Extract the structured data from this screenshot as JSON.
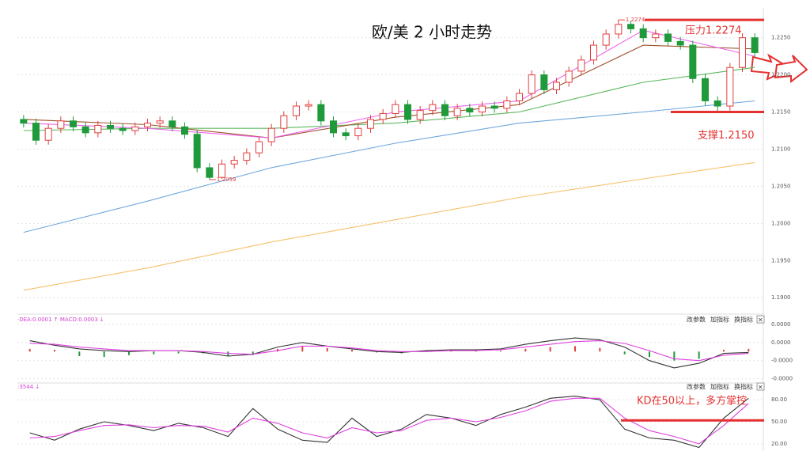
{
  "chart_data": [
    {
      "type": "candlestick",
      "title": "欧/美  2 小时走势",
      "open": [
        1.214,
        1.2135,
        1.2112,
        1.2128,
        1.2138,
        1.213,
        1.2122,
        1.2132,
        1.2128,
        1.2125,
        1.213,
        1.2135,
        1.2138,
        1.213,
        1.212,
        1.2075,
        1.2062,
        1.208,
        1.2085,
        1.2095,
        1.211,
        1.2128,
        1.2145,
        1.2158,
        1.216,
        1.2138,
        1.2122,
        1.2118,
        1.2128,
        1.214,
        1.2148,
        1.216,
        1.214,
        1.2152,
        1.216,
        1.2145,
        1.2155,
        1.215,
        1.2158,
        1.2155,
        1.2165,
        1.2175,
        1.22,
        1.218,
        1.219,
        1.2205,
        1.222,
        1.224,
        1.2255,
        1.2268,
        1.2262,
        1.225,
        1.2255,
        1.2245,
        1.224,
        1.2195,
        1.2165,
        1.2158,
        1.221,
        1.225
      ],
      "high": [
        1.2146,
        1.2141,
        1.2134,
        1.2144,
        1.2144,
        1.2136,
        1.2138,
        1.2138,
        1.2134,
        1.2136,
        1.2141,
        1.2144,
        1.2144,
        1.2136,
        1.2126,
        1.2081,
        1.2086,
        1.2091,
        1.2101,
        1.2116,
        1.2134,
        1.2151,
        1.2164,
        1.2166,
        1.2166,
        1.2144,
        1.2128,
        1.2134,
        1.2146,
        1.2154,
        1.2166,
        1.2166,
        1.2158,
        1.2166,
        1.2166,
        1.2161,
        1.2161,
        1.2164,
        1.2164,
        1.2171,
        1.2181,
        1.2206,
        1.2206,
        1.2196,
        1.2211,
        1.2226,
        1.2246,
        1.2261,
        1.2274,
        1.2272,
        1.2268,
        1.2261,
        1.2261,
        1.2251,
        1.2246,
        1.2201,
        1.2171,
        1.2216,
        1.2256,
        1.2256
      ],
      "low": [
        1.2129,
        1.2106,
        1.2106,
        1.2122,
        1.2124,
        1.2116,
        1.2116,
        1.2122,
        1.2119,
        1.2119,
        1.2124,
        1.2129,
        1.2124,
        1.2114,
        1.2069,
        1.2059,
        1.206,
        1.2074,
        1.2079,
        1.2089,
        1.2104,
        1.2122,
        1.2139,
        1.2152,
        1.2132,
        1.2116,
        1.2112,
        1.2112,
        1.2122,
        1.2134,
        1.2142,
        1.2134,
        1.2134,
        1.2146,
        1.2139,
        1.2139,
        1.2144,
        1.2144,
        1.2149,
        1.2149,
        1.2159,
        1.2169,
        1.2174,
        1.2174,
        1.2184,
        1.2199,
        1.2214,
        1.2234,
        1.2249,
        1.2256,
        1.2244,
        1.2244,
        1.2239,
        1.2234,
        1.2189,
        1.2159,
        1.215,
        1.2152,
        1.2204,
        1.2224
      ],
      "close": [
        1.2135,
        1.2112,
        1.2128,
        1.2138,
        1.213,
        1.2122,
        1.2132,
        1.2128,
        1.2125,
        1.213,
        1.2135,
        1.2138,
        1.213,
        1.212,
        1.2075,
        1.2062,
        1.208,
        1.2085,
        1.2095,
        1.211,
        1.2128,
        1.2145,
        1.2158,
        1.216,
        1.2138,
        1.2122,
        1.2118,
        1.2128,
        1.214,
        1.2148,
        1.216,
        1.214,
        1.2152,
        1.216,
        1.2145,
        1.2155,
        1.215,
        1.2158,
        1.2155,
        1.2165,
        1.2175,
        1.22,
        1.218,
        1.219,
        1.2205,
        1.222,
        1.224,
        1.2255,
        1.2268,
        1.2262,
        1.225,
        1.2255,
        1.2245,
        1.224,
        1.2195,
        1.2165,
        1.2158,
        1.221,
        1.225,
        1.223
      ],
      "up_color": "#e0403f",
      "down_color": "#1f9a3a",
      "lines": [
        {
          "color": "#6fa8dc",
          "x": [
            0,
            10,
            20,
            30,
            40,
            50,
            59
          ],
          "values": [
            1.1988,
            1.203,
            1.2075,
            1.2108,
            1.2135,
            1.215,
            1.2165
          ]
        },
        {
          "color": "#f6c26b",
          "x": [
            0,
            10,
            20,
            30,
            40,
            50,
            59
          ],
          "values": [
            1.191,
            1.194,
            1.1975,
            1.2005,
            1.2035,
            1.206,
            1.2082
          ]
        },
        {
          "color": "#5cb85c",
          "x": [
            0,
            10,
            20,
            30,
            40,
            50,
            59
          ],
          "values": [
            1.2125,
            1.2128,
            1.2128,
            1.2135,
            1.215,
            1.219,
            1.221
          ]
        },
        {
          "color": "#a0522d",
          "x": [
            0,
            10,
            20,
            30,
            40,
            50,
            59
          ],
          "values": [
            1.214,
            1.2133,
            1.2115,
            1.2143,
            1.216,
            1.224,
            1.2235
          ]
        },
        {
          "color": "#ee66ee",
          "x": [
            0,
            10,
            20,
            30,
            40,
            50,
            59
          ],
          "values": [
            1.2135,
            1.2128,
            1.2115,
            1.215,
            1.2165,
            1.226,
            1.2225
          ]
        }
      ],
      "low_label": "1.2059",
      "high_label": "1.2274",
      "levels": [
        {
          "label": "压力1.2274",
          "value": 1.2274
        },
        {
          "label": "支撑1.2150",
          "value": 1.215
        }
      ],
      "ylim": [
        1.188,
        1.2288
      ],
      "yticks": [
        {
          "value": 1.225,
          "label": "1.2250"
        },
        {
          "value": 1.22,
          "label": "1.2200"
        },
        {
          "value": 1.215,
          "label": "1.2150"
        },
        {
          "value": 1.21,
          "label": "1.2100"
        },
        {
          "value": 1.205,
          "label": "1.2050"
        },
        {
          "value": 1.2,
          "label": "1.2000"
        },
        {
          "value": 1.195,
          "label": "1.1950"
        },
        {
          "value": 1.19,
          "label": "1.1900"
        }
      ],
      "grid": true
    },
    {
      "type": "bar",
      "header": "·DEA:0.0001 ↑ MACD:0.0003 ↓",
      "buttons": [
        "改参数",
        "加指标",
        "换指标",
        "×"
      ],
      "values": [
        3e-06,
        2e-06,
        -5e-06,
        -6e-06,
        -4e-06,
        -3e-06,
        -2e-06,
        -2e-06,
        -5e-06,
        -4e-06,
        3e-06,
        6e-06,
        4e-06,
        2e-06,
        -1e-06,
        -2e-06,
        1e-06,
        2e-06,
        1e-06,
        1e-06,
        3e-06,
        5e-06,
        6e-06,
        4e-06,
        -3e-06,
        -6e-06,
        -1e-05,
        -8e-06,
        2e-06,
        3e-06
      ],
      "up_color": "#e0403f",
      "down_color": "#1f9a3a",
      "lines": [
        {
          "color": "#333333",
          "values": [
            1.2e-05,
            7e-06,
            3e-06,
            1e-06,
            0,
            1e-06,
            1e-06,
            -1e-06,
            -5e-06,
            -3e-06,
            5e-06,
            1e-05,
            6e-06,
            3e-06,
            0,
            -1e-06,
            1e-06,
            2e-06,
            2e-06,
            3e-06,
            8e-06,
            1.2e-05,
            1.5e-05,
            1.3e-05,
            5e-06,
            -1e-05,
            -1.8e-05,
            -1.3e-05,
            -2e-06,
            -1e-06
          ]
        },
        {
          "color": "#e040e0",
          "values": [
            9e-06,
            8e-06,
            5e-06,
            3e-06,
            1e-06,
            1e-06,
            1e-06,
            0,
            -2e-06,
            -3e-06,
            1e-06,
            6e-06,
            6e-06,
            4e-06,
            1e-06,
            0,
            0,
            1e-06,
            1e-06,
            2e-06,
            5e-06,
            8e-06,
            1.1e-05,
            1.2e-05,
            9e-06,
            1e-06,
            -8e-06,
            -1e-05,
            -4e-06,
            -2e-06
          ]
        }
      ],
      "ylim": [
        -3.3e-05,
        3.7e-05
      ],
      "yticks": [
        {
          "value": 3e-05,
          "label": "0.0000"
        },
        {
          "value": 1e-05,
          "label": "0.0000"
        },
        {
          "value": -1e-05,
          "label": "-0.0000"
        },
        {
          "value": -3e-05,
          "label": "-0.0000"
        }
      ],
      "grid": true
    },
    {
      "type": "line",
      "header": ":3544 ↓",
      "buttons": [
        "改参数",
        "加指标",
        "换指标",
        "×"
      ],
      "lines": [
        {
          "color": "#333333",
          "values": [
            35,
            25,
            40,
            50,
            45,
            38,
            48,
            42,
            30,
            68,
            40,
            25,
            22,
            55,
            30,
            40,
            60,
            55,
            45,
            60,
            70,
            82,
            85,
            80,
            40,
            28,
            25,
            15,
            55,
            82
          ]
        },
        {
          "color": "#e040e0",
          "values": [
            28,
            30,
            38,
            45,
            46,
            42,
            45,
            44,
            36,
            55,
            48,
            35,
            28,
            42,
            35,
            38,
            52,
            55,
            50,
            56,
            65,
            78,
            82,
            82,
            55,
            38,
            30,
            20,
            45,
            75
          ]
        }
      ],
      "level": 52,
      "annotation": "KD在50以上，多方掌控",
      "ylim": [
        14.5,
        99.6
      ],
      "yticks": [
        {
          "value": 80,
          "label": "80.00"
        },
        {
          "value": 50,
          "label": "50.00"
        },
        {
          "value": 20,
          "label": "20.00"
        }
      ],
      "grid": true
    }
  ]
}
